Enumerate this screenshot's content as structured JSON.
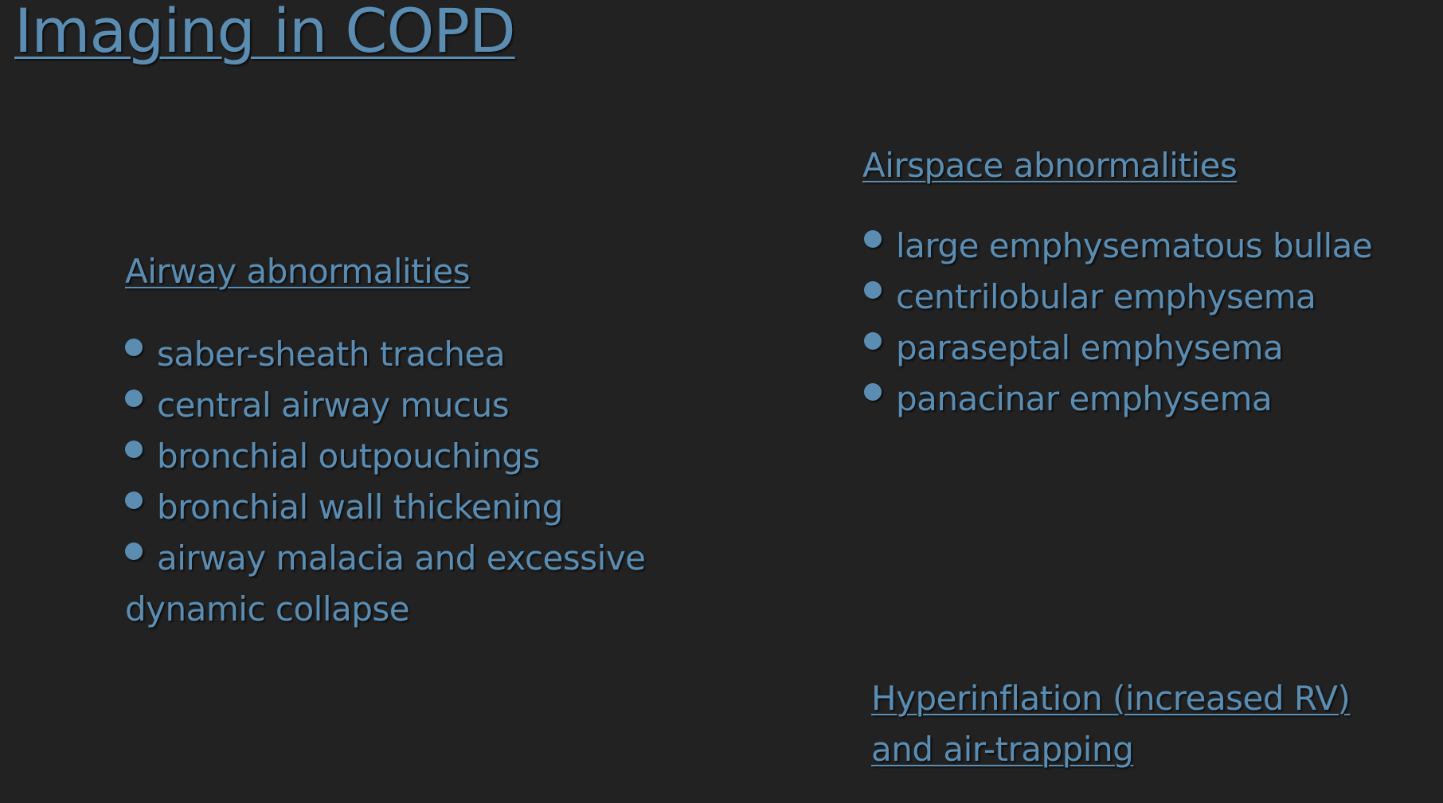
{
  "title": "Imaging in COPD",
  "colors": {
    "background": "#222222",
    "text": "#5b8db3"
  },
  "airway": {
    "heading": "Airway abnormalities",
    "items": [
      "saber-sheath trachea",
      "central airway mucus",
      "bronchial outpouchings",
      "bronchial wall thickening",
      "airway malacia and excessive dynamic collapse"
    ]
  },
  "airspace": {
    "heading": "Airspace abnormalities",
    "items": [
      "large emphysematous bullae",
      "centrilobular emphysema",
      "paraseptal emphysema",
      "panacinar emphysema"
    ]
  },
  "hyperinflation": {
    "heading": "Hyperinflation (increased RV) and air-trapping"
  }
}
